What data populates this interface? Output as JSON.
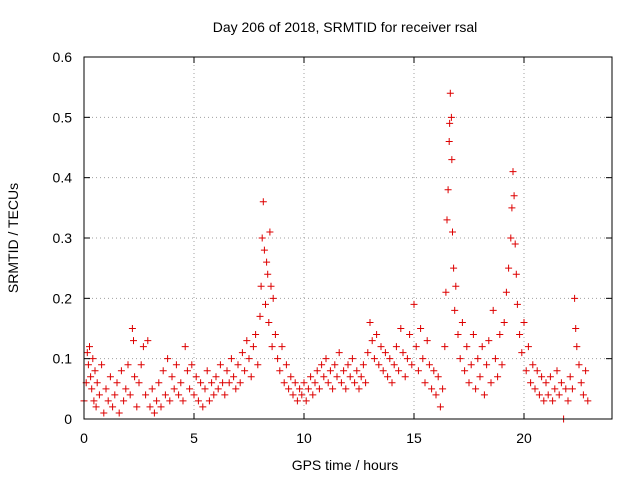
{
  "chart_data": {
    "type": "scatter",
    "title": "Day 206 of 2018, SRMTID for receiver rsal",
    "xlabel": "GPS time / hours",
    "ylabel": "SRMTID / TECUs",
    "xlim": [
      0,
      24
    ],
    "ylim": [
      0,
      0.6
    ],
    "x_ticks": [
      0,
      5,
      10,
      15,
      20
    ],
    "x_tick_labels": [
      "0",
      "5",
      "10",
      "15",
      "20"
    ],
    "y_ticks": [
      0,
      0.1,
      0.2,
      0.3,
      0.4,
      0.5,
      0.6
    ],
    "y_tick_labels": [
      "0",
      "0.1",
      "0.2",
      "0.3",
      "0.4",
      "0.5",
      "0.6"
    ],
    "grid": true,
    "marker": "+",
    "color": "#dd0000",
    "series": [
      {
        "name": "SRMTID",
        "points": [
          [
            0.0,
            0.03
          ],
          [
            0.1,
            0.06
          ],
          [
            0.15,
            0.11
          ],
          [
            0.2,
            0.09
          ],
          [
            0.25,
            0.12
          ],
          [
            0.3,
            0.07
          ],
          [
            0.35,
            0.05
          ],
          [
            0.4,
            0.1
          ],
          [
            0.45,
            0.03
          ],
          [
            0.5,
            0.08
          ],
          [
            0.55,
            0.02
          ],
          [
            0.6,
            0.06
          ],
          [
            0.7,
            0.04
          ],
          [
            0.8,
            0.09
          ],
          [
            0.9,
            0.01
          ],
          [
            1.0,
            0.05
          ],
          [
            1.1,
            0.03
          ],
          [
            1.2,
            0.07
          ],
          [
            1.3,
            0.02
          ],
          [
            1.4,
            0.04
          ],
          [
            1.5,
            0.06
          ],
          [
            1.6,
            0.01
          ],
          [
            1.7,
            0.08
          ],
          [
            1.8,
            0.03
          ],
          [
            1.9,
            0.05
          ],
          [
            2.0,
            0.09
          ],
          [
            2.1,
            0.04
          ],
          [
            2.2,
            0.15
          ],
          [
            2.25,
            0.13
          ],
          [
            2.3,
            0.07
          ],
          [
            2.4,
            0.02
          ],
          [
            2.5,
            0.06
          ],
          [
            2.6,
            0.09
          ],
          [
            2.7,
            0.12
          ],
          [
            2.8,
            0.04
          ],
          [
            2.9,
            0.13
          ],
          [
            3.0,
            0.02
          ],
          [
            3.1,
            0.05
          ],
          [
            3.2,
            0.01
          ],
          [
            3.3,
            0.03
          ],
          [
            3.4,
            0.06
          ],
          [
            3.5,
            0.02
          ],
          [
            3.6,
            0.08
          ],
          [
            3.7,
            0.04
          ],
          [
            3.8,
            0.1
          ],
          [
            3.9,
            0.03
          ],
          [
            4.0,
            0.07
          ],
          [
            4.1,
            0.05
          ],
          [
            4.2,
            0.09
          ],
          [
            4.3,
            0.04
          ],
          [
            4.4,
            0.06
          ],
          [
            4.5,
            0.03
          ],
          [
            4.6,
            0.12
          ],
          [
            4.7,
            0.08
          ],
          [
            4.8,
            0.05
          ],
          [
            4.9,
            0.09
          ],
          [
            5.0,
            0.04
          ],
          [
            5.1,
            0.07
          ],
          [
            5.2,
            0.03
          ],
          [
            5.3,
            0.06
          ],
          [
            5.4,
            0.02
          ],
          [
            5.5,
            0.05
          ],
          [
            5.6,
            0.08
          ],
          [
            5.7,
            0.03
          ],
          [
            5.8,
            0.06
          ],
          [
            5.9,
            0.04
          ],
          [
            6.0,
            0.07
          ],
          [
            6.1,
            0.05
          ],
          [
            6.2,
            0.09
          ],
          [
            6.3,
            0.06
          ],
          [
            6.4,
            0.04
          ],
          [
            6.5,
            0.08
          ],
          [
            6.6,
            0.06
          ],
          [
            6.7,
            0.1
          ],
          [
            6.8,
            0.07
          ],
          [
            6.9,
            0.05
          ],
          [
            7.0,
            0.09
          ],
          [
            7.1,
            0.06
          ],
          [
            7.2,
            0.11
          ],
          [
            7.3,
            0.08
          ],
          [
            7.4,
            0.13
          ],
          [
            7.5,
            0.1
          ],
          [
            7.6,
            0.07
          ],
          [
            7.7,
            0.12
          ],
          [
            7.8,
            0.14
          ],
          [
            7.9,
            0.09
          ],
          [
            8.0,
            0.17
          ],
          [
            8.05,
            0.22
          ],
          [
            8.1,
            0.3
          ],
          [
            8.15,
            0.36
          ],
          [
            8.2,
            0.28
          ],
          [
            8.25,
            0.19
          ],
          [
            8.3,
            0.26
          ],
          [
            8.35,
            0.24
          ],
          [
            8.4,
            0.16
          ],
          [
            8.45,
            0.31
          ],
          [
            8.5,
            0.22
          ],
          [
            8.55,
            0.12
          ],
          [
            8.6,
            0.2
          ],
          [
            8.7,
            0.14
          ],
          [
            8.8,
            0.1
          ],
          [
            8.9,
            0.08
          ],
          [
            9.0,
            0.12
          ],
          [
            9.1,
            0.06
          ],
          [
            9.2,
            0.09
          ],
          [
            9.3,
            0.05
          ],
          [
            9.4,
            0.07
          ],
          [
            9.5,
            0.04
          ],
          [
            9.6,
            0.06
          ],
          [
            9.7,
            0.03
          ],
          [
            9.8,
            0.05
          ],
          [
            9.9,
            0.04
          ],
          [
            10.0,
            0.06
          ],
          [
            10.1,
            0.03
          ],
          [
            10.2,
            0.05
          ],
          [
            10.3,
            0.07
          ],
          [
            10.4,
            0.04
          ],
          [
            10.5,
            0.06
          ],
          [
            10.6,
            0.08
          ],
          [
            10.7,
            0.05
          ],
          [
            10.8,
            0.09
          ],
          [
            10.9,
            0.07
          ],
          [
            11.0,
            0.1
          ],
          [
            11.1,
            0.06
          ],
          [
            11.2,
            0.08
          ],
          [
            11.3,
            0.05
          ],
          [
            11.4,
            0.09
          ],
          [
            11.5,
            0.07
          ],
          [
            11.6,
            0.11
          ],
          [
            11.7,
            0.06
          ],
          [
            11.8,
            0.08
          ],
          [
            11.9,
            0.05
          ],
          [
            12.0,
            0.09
          ],
          [
            12.1,
            0.07
          ],
          [
            12.2,
            0.1
          ],
          [
            12.3,
            0.06
          ],
          [
            12.4,
            0.08
          ],
          [
            12.5,
            0.05
          ],
          [
            12.6,
            0.07
          ],
          [
            12.7,
            0.09
          ],
          [
            12.8,
            0.06
          ],
          [
            12.9,
            0.11
          ],
          [
            13.0,
            0.16
          ],
          [
            13.1,
            0.13
          ],
          [
            13.2,
            0.1
          ],
          [
            13.3,
            0.14
          ],
          [
            13.4,
            0.09
          ],
          [
            13.5,
            0.12
          ],
          [
            13.6,
            0.08
          ],
          [
            13.7,
            0.11
          ],
          [
            13.8,
            0.07
          ],
          [
            13.9,
            0.1
          ],
          [
            14.0,
            0.06
          ],
          [
            14.1,
            0.09
          ],
          [
            14.2,
            0.12
          ],
          [
            14.3,
            0.08
          ],
          [
            14.4,
            0.15
          ],
          [
            14.5,
            0.11
          ],
          [
            14.6,
            0.07
          ],
          [
            14.7,
            0.1
          ],
          [
            14.8,
            0.14
          ],
          [
            14.9,
            0.09
          ],
          [
            15.0,
            0.19
          ],
          [
            15.1,
            0.12
          ],
          [
            15.2,
            0.08
          ],
          [
            15.3,
            0.15
          ],
          [
            15.4,
            0.1
          ],
          [
            15.5,
            0.06
          ],
          [
            15.6,
            0.13
          ],
          [
            15.7,
            0.09
          ],
          [
            15.8,
            0.05
          ],
          [
            15.9,
            0.08
          ],
          [
            16.0,
            0.04
          ],
          [
            16.1,
            0.07
          ],
          [
            16.2,
            0.02
          ],
          [
            16.3,
            0.05
          ],
          [
            16.4,
            0.12
          ],
          [
            16.45,
            0.21
          ],
          [
            16.5,
            0.33
          ],
          [
            16.55,
            0.38
          ],
          [
            16.6,
            0.46
          ],
          [
            16.62,
            0.49
          ],
          [
            16.65,
            0.54
          ],
          [
            16.7,
            0.5
          ],
          [
            16.72,
            0.43
          ],
          [
            16.75,
            0.31
          ],
          [
            16.8,
            0.25
          ],
          [
            16.85,
            0.18
          ],
          [
            16.9,
            0.22
          ],
          [
            17.0,
            0.14
          ],
          [
            17.1,
            0.1
          ],
          [
            17.2,
            0.16
          ],
          [
            17.3,
            0.08
          ],
          [
            17.4,
            0.12
          ],
          [
            17.5,
            0.06
          ],
          [
            17.6,
            0.09
          ],
          [
            17.7,
            0.14
          ],
          [
            17.8,
            0.05
          ],
          [
            17.9,
            0.1
          ],
          [
            18.0,
            0.07
          ],
          [
            18.1,
            0.12
          ],
          [
            18.2,
            0.04
          ],
          [
            18.3,
            0.09
          ],
          [
            18.4,
            0.13
          ],
          [
            18.5,
            0.06
          ],
          [
            18.6,
            0.18
          ],
          [
            18.7,
            0.1
          ],
          [
            18.8,
            0.07
          ],
          [
            18.9,
            0.14
          ],
          [
            19.0,
            0.09
          ],
          [
            19.1,
            0.16
          ],
          [
            19.2,
            0.21
          ],
          [
            19.3,
            0.25
          ],
          [
            19.4,
            0.3
          ],
          [
            19.45,
            0.35
          ],
          [
            19.5,
            0.41
          ],
          [
            19.55,
            0.37
          ],
          [
            19.6,
            0.29
          ],
          [
            19.65,
            0.24
          ],
          [
            19.7,
            0.19
          ],
          [
            19.8,
            0.14
          ],
          [
            19.9,
            0.11
          ],
          [
            20.0,
            0.16
          ],
          [
            20.1,
            0.08
          ],
          [
            20.2,
            0.12
          ],
          [
            20.3,
            0.06
          ],
          [
            20.4,
            0.09
          ],
          [
            20.5,
            0.05
          ],
          [
            20.6,
            0.08
          ],
          [
            20.7,
            0.04
          ],
          [
            20.8,
            0.07
          ],
          [
            20.9,
            0.03
          ],
          [
            21.0,
            0.06
          ],
          [
            21.1,
            0.04
          ],
          [
            21.2,
            0.07
          ],
          [
            21.3,
            0.03
          ],
          [
            21.4,
            0.05
          ],
          [
            21.5,
            0.08
          ],
          [
            21.6,
            0.04
          ],
          [
            21.7,
            0.06
          ],
          [
            21.8,
            0.0
          ],
          [
            21.9,
            0.05
          ],
          [
            22.0,
            0.03
          ],
          [
            22.1,
            0.07
          ],
          [
            22.2,
            0.05
          ],
          [
            22.3,
            0.2
          ],
          [
            22.35,
            0.15
          ],
          [
            22.4,
            0.12
          ],
          [
            22.5,
            0.09
          ],
          [
            22.6,
            0.06
          ],
          [
            22.7,
            0.04
          ],
          [
            22.8,
            0.08
          ],
          [
            22.9,
            0.03
          ]
        ]
      }
    ]
  }
}
